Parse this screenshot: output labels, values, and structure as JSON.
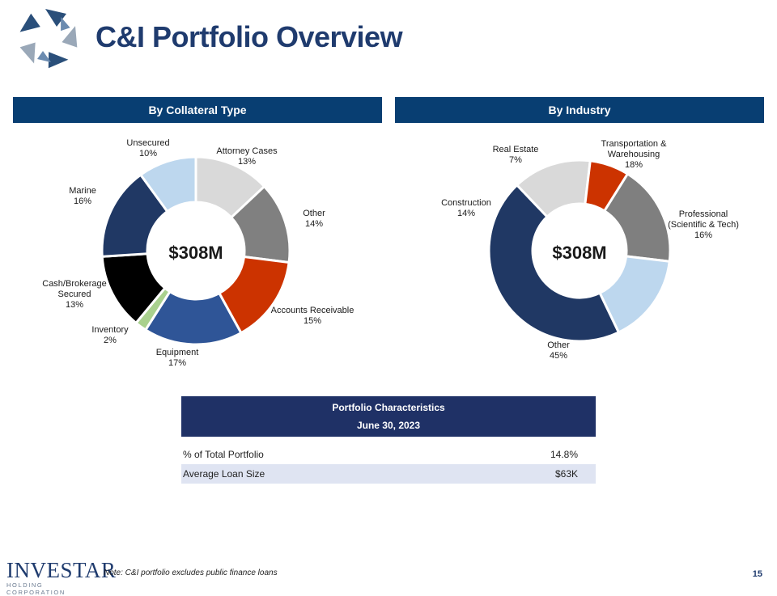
{
  "title": "C&I Portfolio Overview",
  "chart_data": [
    {
      "type": "pie",
      "title": "By Collateral Type",
      "center_label": "$308M",
      "categories": [
        "Attorney Cases",
        "Other",
        "Accounts Receivable",
        "Equipment",
        "Inventory",
        "Cash/Brokerage Secured",
        "Marine",
        "Unsecured"
      ],
      "values": [
        13,
        14,
        15,
        17,
        2,
        13,
        16,
        10
      ],
      "value_labels": [
        "13%",
        "14%",
        "15%",
        "17%",
        "2%",
        "13%",
        "16%",
        "10%"
      ],
      "colors": [
        "#d9d9d9",
        "#808080",
        "#cc3300",
        "#2f5597",
        "#a9d18e",
        "#000000",
        "#203864",
        "#bdd7ee"
      ]
    },
    {
      "type": "pie",
      "title": "By Industry",
      "center_label": "$308M",
      "categories": [
        "Transportation & Warehousing",
        "Professional (Scientific & Tech)",
        "Other",
        "Construction",
        "Real Estate"
      ],
      "values": [
        18,
        16,
        45,
        14,
        7
      ],
      "value_labels": [
        "18%",
        "16%",
        "45%",
        "14%",
        "7%"
      ],
      "colors": [
        "#7f7f7f",
        "#bdd7ee",
        "#203864",
        "#d9d9d9",
        "#cc3300"
      ]
    }
  ],
  "table": {
    "title": "Portfolio Characteristics",
    "subtitle": "June 30, 2023",
    "rows": [
      {
        "label": "% of Total Portfolio",
        "value": "14.8%"
      },
      {
        "label": "Average Loan Size",
        "value": "$63K"
      }
    ]
  },
  "footer": {
    "brand": "INVESTAR",
    "brand_sub": "HOLDING CORPORATION",
    "note": "Note: C&I portfolio excludes public finance loans",
    "page_number": "15"
  }
}
